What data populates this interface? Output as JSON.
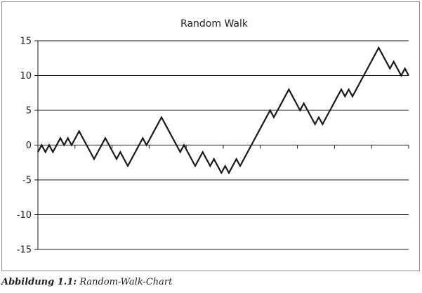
{
  "chart_data": {
    "type": "line",
    "title": "Random Walk",
    "xlabel": "",
    "ylabel": "",
    "ylim": [
      -15,
      15
    ],
    "yticks": [
      -15,
      -10,
      -5,
      0,
      5,
      10,
      15
    ],
    "grid": "horizontal",
    "legend": "none",
    "x": [
      0,
      1,
      2,
      3,
      4,
      5,
      6,
      7,
      8,
      9,
      10,
      11,
      12,
      13,
      14,
      15,
      16,
      17,
      18,
      19,
      20,
      21,
      22,
      23,
      24,
      25,
      26,
      27,
      28,
      29,
      30,
      31,
      32,
      33,
      34,
      35,
      36,
      37,
      38,
      39,
      40,
      41,
      42,
      43,
      44,
      45,
      46,
      47,
      48,
      49,
      50,
      51,
      52,
      53,
      54,
      55,
      56,
      57,
      58,
      59,
      60,
      61,
      62,
      63,
      64,
      65,
      66,
      67,
      68,
      69,
      70,
      71,
      72,
      73,
      74,
      75,
      76,
      77,
      78,
      79,
      80,
      81,
      82,
      83,
      84,
      85,
      86,
      87,
      88,
      89,
      90,
      91,
      92,
      93,
      94,
      95,
      96,
      97,
      98,
      99
    ],
    "series": [
      {
        "values": [
          -1,
          0,
          -1,
          0,
          -1,
          0,
          1,
          0,
          1,
          0,
          1,
          2,
          1,
          0,
          -1,
          -2,
          -1,
          0,
          1,
          0,
          -1,
          -2,
          -1,
          -2,
          -3,
          -2,
          -1,
          0,
          1,
          0,
          1,
          2,
          3,
          4,
          3,
          2,
          1,
          0,
          -1,
          0,
          -1,
          -2,
          -3,
          -2,
          -1,
          -2,
          -3,
          -2,
          -3,
          -4,
          -3,
          -4,
          -3,
          -2,
          -3,
          -2,
          -1,
          0,
          1,
          2,
          3,
          4,
          5,
          4,
          5,
          6,
          7,
          8,
          7,
          6,
          5,
          6,
          5,
          4,
          3,
          4,
          3,
          4,
          5,
          6,
          7,
          8,
          7,
          8,
          7,
          8,
          9,
          10,
          11,
          12,
          13,
          14,
          13,
          12,
          11,
          12,
          11,
          10,
          11,
          10
        ],
        "color": "#1a1a1a"
      }
    ]
  },
  "caption": {
    "label": "Abbildung 1.1:",
    "text": "Random-Walk-Chart"
  }
}
